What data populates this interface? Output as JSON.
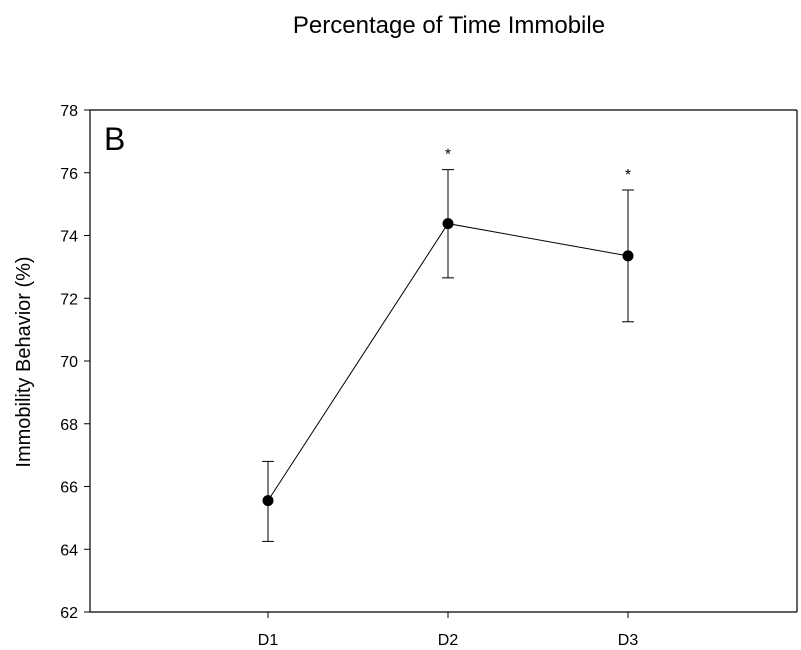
{
  "chart_data": {
    "type": "line",
    "title": "Percentage of Time Immobile",
    "xlabel": "",
    "ylabel": "Immobility Behavior (%)",
    "panel_label": "B",
    "categories": [
      "D1",
      "D2",
      "D3"
    ],
    "ylim": [
      62,
      78
    ],
    "yticks": [
      62,
      64,
      66,
      68,
      70,
      72,
      74,
      76,
      78
    ],
    "series": [
      {
        "values": [
          65.55,
          74.38,
          73.35
        ],
        "error_low": [
          64.25,
          72.65,
          71.25
        ],
        "error_high": [
          66.8,
          76.1,
          75.45
        ],
        "significance": [
          "",
          "*",
          "*"
        ]
      }
    ],
    "grid": false,
    "colors": {
      "line": "#000000",
      "marker": "#000000"
    }
  }
}
